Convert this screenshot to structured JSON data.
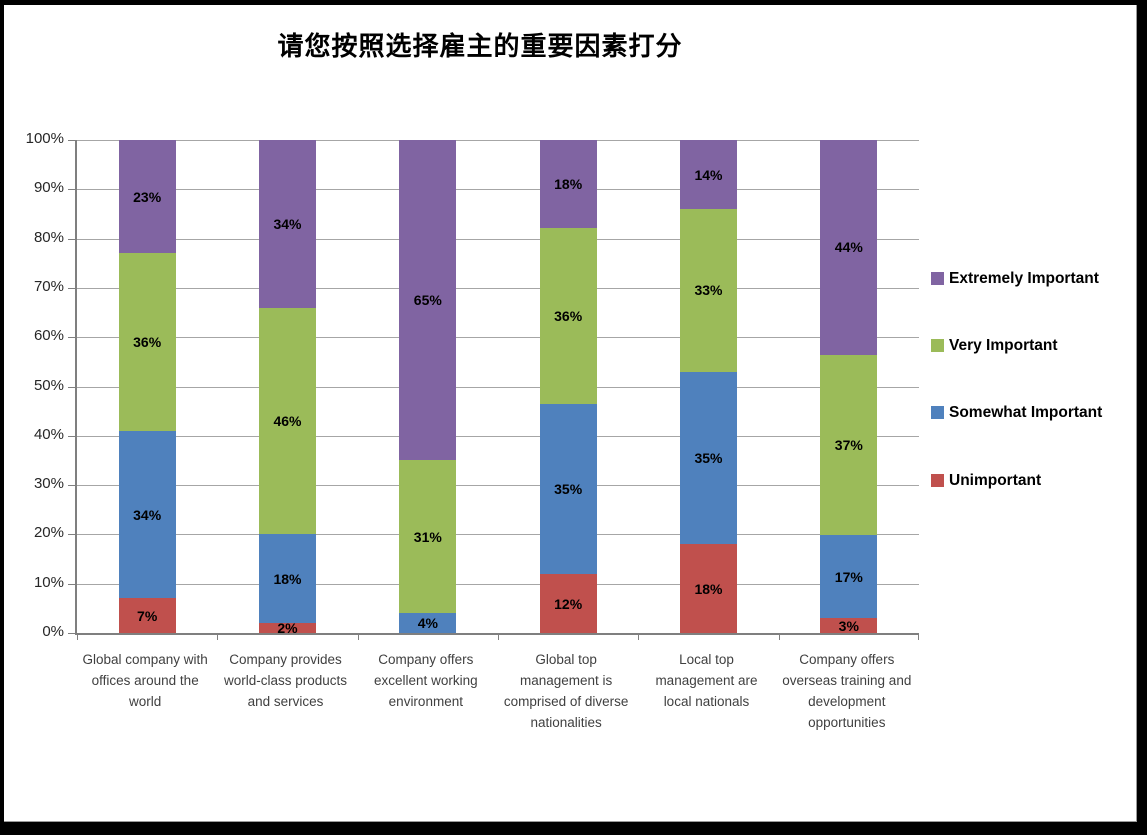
{
  "title": "请您按照选择雇主的重要因素打分",
  "colors": {
    "unimportant": "#C0504D",
    "somewhat_important": "#4F81BD",
    "very_important": "#9BBB59",
    "extremely_important": "#8064A2",
    "gridline": "#A6A6A6",
    "axis": "#7F7F7F"
  },
  "chart_data": {
    "type": "bar",
    "stacked": true,
    "title": "请您按照选择雇主的重要因素打分",
    "categories": [
      "Global company with offices around the world",
      "Company provides world-class products and services",
      "Company offers excellent working environment",
      "Global top management is comprised of diverse nationalities",
      "Local top management are local nationals",
      "Company offers overseas training and development opportunities"
    ],
    "series": [
      {
        "name": "Unimportant",
        "color": "#C0504D",
        "values": [
          7,
          2,
          0,
          12,
          18,
          3
        ]
      },
      {
        "name": "Somewhat Important",
        "color": "#4F81BD",
        "values": [
          34,
          18,
          4,
          35,
          35,
          17
        ]
      },
      {
        "name": "Very Important",
        "color": "#9BBB59",
        "values": [
          36,
          46,
          31,
          36,
          33,
          37
        ]
      },
      {
        "name": "Extremely Important",
        "color": "#8064A2",
        "values": [
          23,
          34,
          65,
          18,
          14,
          44
        ]
      }
    ],
    "data_label_format": "{value}%",
    "legend_order": [
      "Extremely Important",
      "Very Important",
      "Somewhat Important",
      "Unimportant"
    ],
    "legend_position": "right",
    "y_ticks": [
      "0%",
      "10%",
      "20%",
      "30%",
      "40%",
      "50%",
      "60%",
      "70%",
      "80%",
      "90%",
      "100%"
    ],
    "ylim": [
      0,
      100
    ],
    "grid": true
  }
}
